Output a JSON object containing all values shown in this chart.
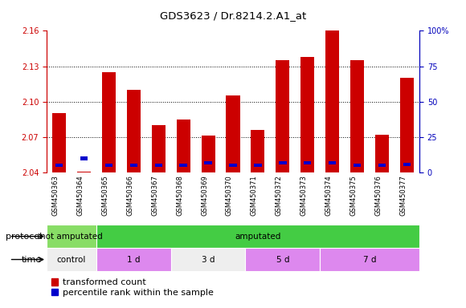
{
  "title": "GDS3623 / Dr.8214.2.A1_at",
  "samples": [
    "GSM450363",
    "GSM450364",
    "GSM450365",
    "GSM450366",
    "GSM450367",
    "GSM450368",
    "GSM450369",
    "GSM450370",
    "GSM450371",
    "GSM450372",
    "GSM450373",
    "GSM450374",
    "GSM450375",
    "GSM450376",
    "GSM450377"
  ],
  "red_values": [
    2.09,
    2.041,
    2.125,
    2.11,
    2.08,
    2.085,
    2.071,
    2.105,
    2.076,
    2.135,
    2.138,
    2.16,
    2.135,
    2.072,
    2.12
  ],
  "blue_values": [
    2.046,
    2.052,
    2.046,
    2.046,
    2.046,
    2.046,
    2.048,
    2.046,
    2.046,
    2.048,
    2.048,
    2.048,
    2.046,
    2.046,
    2.047
  ],
  "ylim_left": [
    2.04,
    2.16
  ],
  "ylim_right": [
    0,
    100
  ],
  "yticks_left": [
    2.04,
    2.07,
    2.1,
    2.13,
    2.16
  ],
  "yticks_right": [
    0,
    25,
    50,
    75,
    100
  ],
  "bar_bottom": 2.04,
  "bar_color_red": "#cc0000",
  "bar_color_blue": "#0000cc",
  "plot_bg": "#ffffff",
  "tick_bg": "#cccccc",
  "ylabel_left_color": "#cc0000",
  "ylabel_right_color": "#0000bb",
  "protocol_groups": [
    {
      "label": "not amputated",
      "start": 0,
      "end": 2,
      "color": "#88dd66"
    },
    {
      "label": "amputated",
      "start": 2,
      "end": 15,
      "color": "#44cc44"
    }
  ],
  "time_groups": [
    {
      "label": "control",
      "start": 0,
      "end": 2,
      "color": "#eeeeee"
    },
    {
      "label": "1 d",
      "start": 2,
      "end": 5,
      "color": "#dd88ee"
    },
    {
      "label": "3 d",
      "start": 5,
      "end": 8,
      "color": "#eeeeee"
    },
    {
      "label": "5 d",
      "start": 8,
      "end": 11,
      "color": "#dd88ee"
    },
    {
      "label": "7 d",
      "start": 11,
      "end": 15,
      "color": "#dd88ee"
    }
  ],
  "legend_red": "transformed count",
  "legend_blue": "percentile rank within the sample",
  "tick_fontsize": 7,
  "sample_fontsize": 6
}
